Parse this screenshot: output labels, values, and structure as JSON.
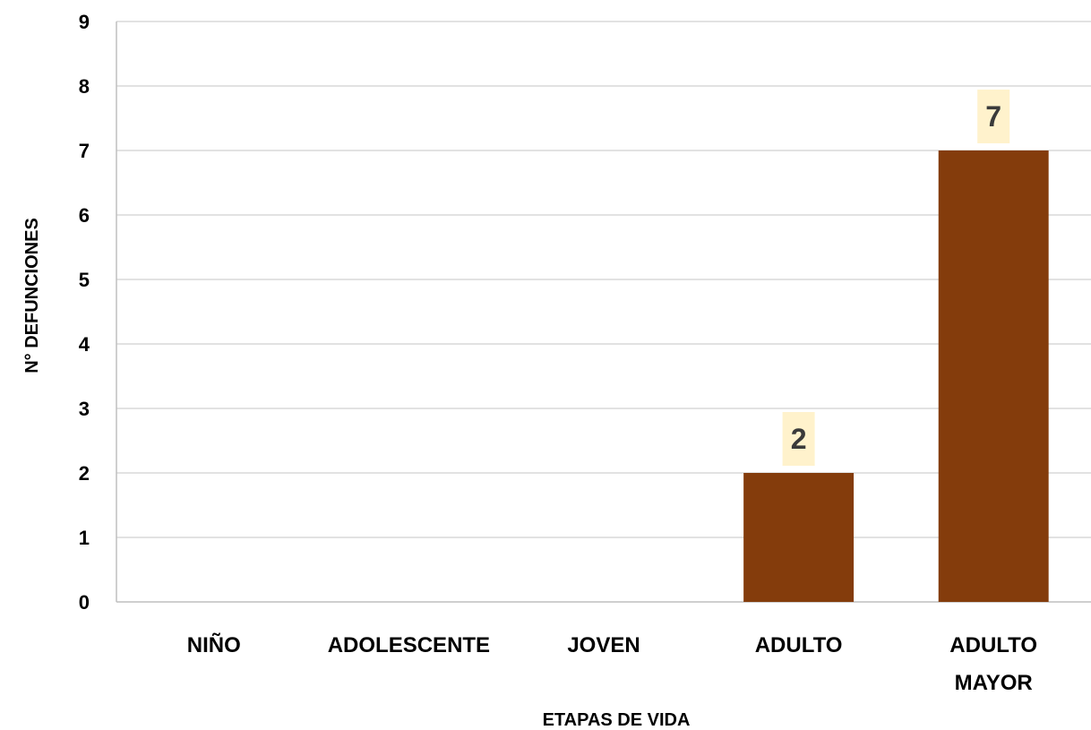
{
  "chart_data": {
    "type": "bar",
    "categories": [
      [
        "NIÑO"
      ],
      [
        "ADOLESCENTE"
      ],
      [
        "JOVEN"
      ],
      [
        "ADULTO"
      ],
      [
        "ADULTO",
        "MAYOR"
      ]
    ],
    "values": [
      0,
      0,
      0,
      2,
      7
    ],
    "data_labels": [
      "",
      "",
      "",
      "2",
      "7"
    ],
    "title": "",
    "xlabel": "ETAPAS DE VIDA",
    "ylabel": "N° DEFUNCIONES",
    "ylim": [
      0,
      9
    ],
    "yticks": [
      "0",
      "1",
      "2",
      "3",
      "4",
      "5",
      "6",
      "7",
      "8",
      "9"
    ],
    "grid": true,
    "legend": "none",
    "colors": {
      "bar": "#843C0C",
      "data_label_bg": "#FFF2CC",
      "data_label_text": "#3A3A3A",
      "grid": "#D9D9D9",
      "axis": "#BFBFBF"
    }
  }
}
